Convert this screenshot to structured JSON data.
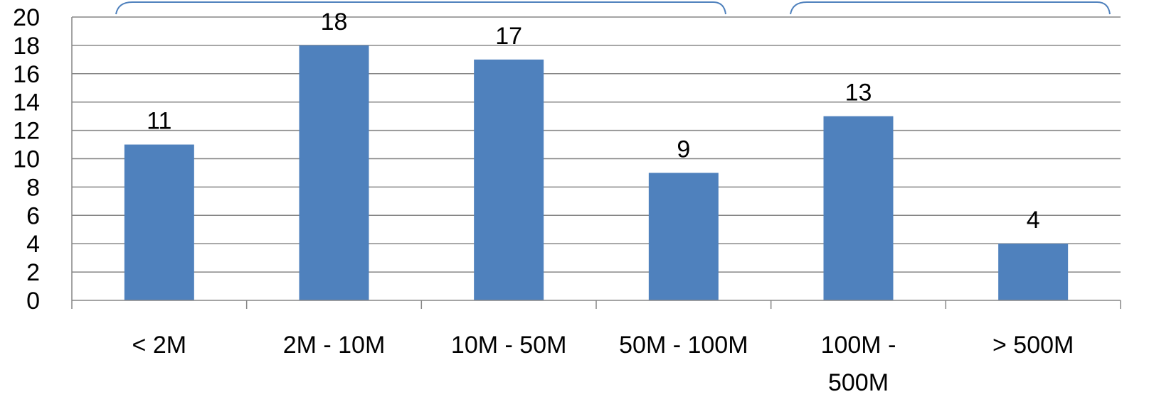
{
  "chart_data": {
    "type": "bar",
    "categories": [
      "< 2M",
      "2M - 10M",
      "10M - 50M",
      "50M - 100M",
      "100M - 500M",
      "> 500M"
    ],
    "category_lines": [
      [
        "< 2M"
      ],
      [
        "2M - 10M"
      ],
      [
        "10M - 50M"
      ],
      [
        "50M - 100M"
      ],
      [
        "100M -",
        "500M"
      ],
      [
        "> 500M"
      ]
    ],
    "values": [
      11,
      18,
      17,
      9,
      13,
      4
    ],
    "data_labels": [
      "11",
      "18",
      "17",
      "9",
      "13",
      "4"
    ],
    "yticks": [
      "0",
      "2",
      "4",
      "6",
      "8",
      "10",
      "12",
      "14",
      "16",
      "18",
      "20"
    ],
    "ylim": [
      0,
      20
    ],
    "grid": true,
    "legend": "none",
    "title": "",
    "xlabel": "",
    "ylabel": "",
    "colors": {
      "bar": "#4F81BD",
      "grid": "#868686",
      "axis": "#868686",
      "bracket": "#4F81BD"
    }
  }
}
